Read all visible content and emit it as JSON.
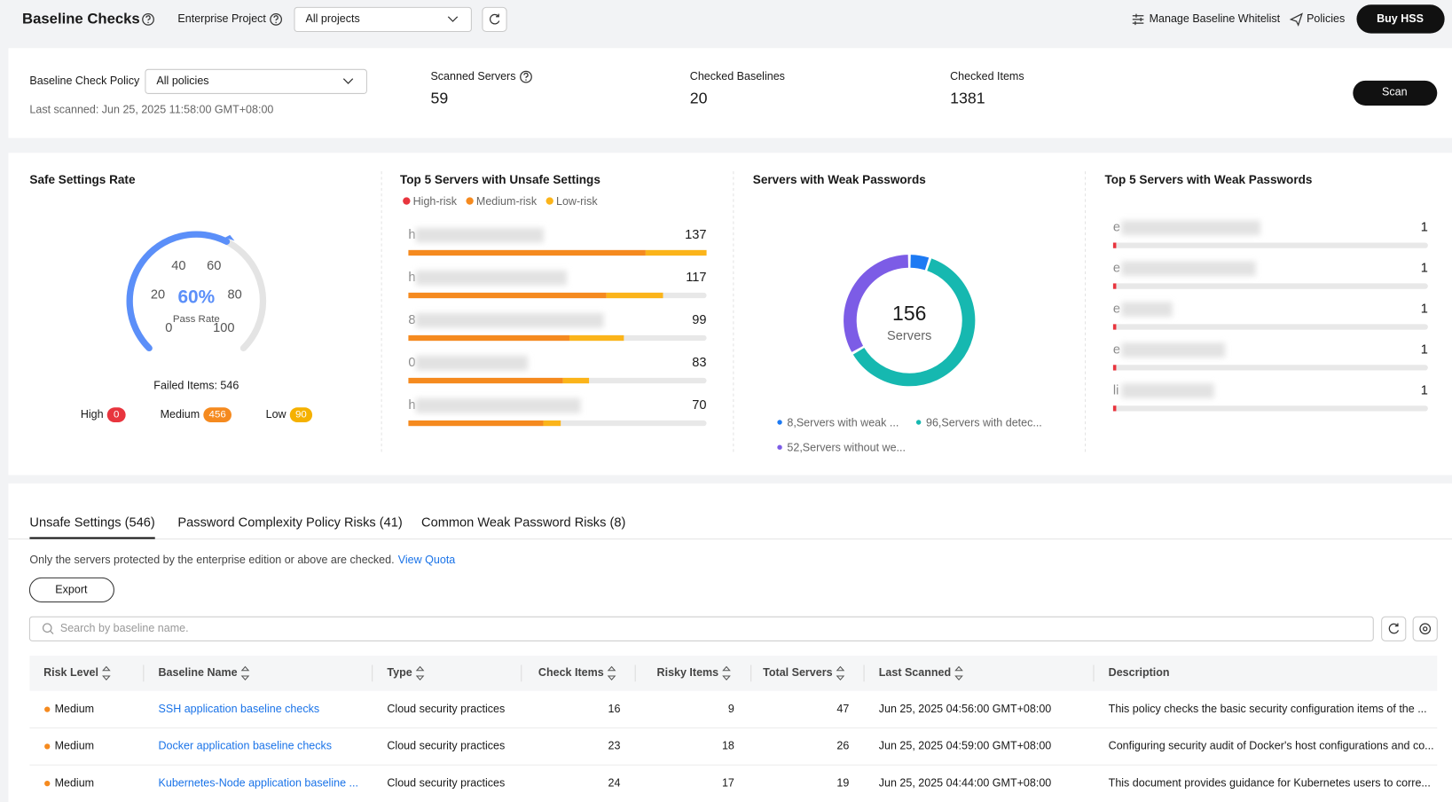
{
  "header": {
    "title": "Baseline Checks",
    "project_label": "Enterprise Project",
    "project_value": "All projects",
    "whitelist": "Manage Baseline Whitelist",
    "policies": "Policies",
    "buy": "Buy HSS"
  },
  "summary": {
    "policy_label": "Baseline Check Policy",
    "policy_value": "All policies",
    "last_scanned": "Last scanned: Jun 25, 2025 11:58:00 GMT+08:00",
    "stats": [
      {
        "label": "Scanned Servers",
        "value": 59
      },
      {
        "label": "Checked Baselines",
        "value": 20
      },
      {
        "label": "Checked Items",
        "value": 1381
      }
    ],
    "scan": "Scan"
  },
  "chart_data": [
    {
      "type": "gauge",
      "title": "Safe Settings Rate",
      "value": 60,
      "value_label": "60%",
      "caption": "Pass Rate",
      "ylim": [
        0,
        100
      ],
      "yticks": [
        0,
        20,
        40,
        60,
        80,
        100
      ],
      "color": "#5b8ff9",
      "failed": "Failed Items: 546",
      "levels": [
        {
          "name": "High",
          "value": 0,
          "color": "#e8353e"
        },
        {
          "name": "Medium",
          "value": 456,
          "color": "#f58a1f"
        },
        {
          "name": "Low",
          "value": 90,
          "color": "#f5b100"
        }
      ]
    },
    {
      "type": "stacked_bar_list",
      "title": "Top 5 Servers with Unsafe Settings",
      "categories": [
        "h",
        "h",
        "8",
        "0",
        "h"
      ],
      "totals": [
        137,
        117,
        99,
        83,
        70
      ],
      "xlim": [
        0,
        137
      ],
      "series": [
        {
          "name": "High-risk",
          "color": "#e8353e",
          "values": [
            0,
            0,
            0,
            0,
            0
          ]
        },
        {
          "name": "Medium-risk",
          "color": "#f58a1f",
          "values": [
            109,
            91,
            74,
            71,
            62
          ]
        },
        {
          "name": "Low-risk",
          "color": "#fbb41a",
          "values": [
            28,
            26,
            25,
            12,
            8
          ]
        }
      ]
    },
    {
      "type": "donut",
      "title": "Servers with Weak Passwords",
      "total": 156,
      "caption": "Servers",
      "values": [
        8,
        96,
        52
      ],
      "labels": [
        "8,Servers with weak ...",
        "96,Servers with detec...",
        "52,Servers without we..."
      ],
      "colors": [
        "#1d7af3",
        "#16b8b0",
        "#7c5ce6"
      ]
    },
    {
      "type": "bar_list",
      "title": "Top 5 Servers with Weak Passwords",
      "categories": [
        "e",
        "e",
        "e",
        "e",
        "li"
      ],
      "values": [
        1,
        1,
        1,
        1,
        1
      ],
      "xlim": [
        0,
        100
      ],
      "color": "#e8353e"
    }
  ],
  "risks": {
    "tabs": [
      "Unsafe Settings (546)",
      "Password Complexity Policy Risks (41)",
      "Common Weak Password Risks (8)"
    ],
    "notice": "Only the servers protected by the enterprise edition or above are checked.",
    "quota_link": "View Quota",
    "export": "Export",
    "search_placeholder": "Search by baseline name.",
    "table": {
      "risk_color": "#f58a1f",
      "columns": [
        "Risk Level",
        "Baseline Name",
        "Type",
        "Check Items",
        "Risky Items",
        "Total Servers",
        "Last Scanned",
        "Description"
      ],
      "rows": [
        [
          "Medium",
          "SSH application baseline checks",
          "Cloud security practices",
          16,
          9,
          47,
          "Jun 25, 2025 04:56:00 GMT+08:00",
          "This policy checks the basic security configuration items of the ..."
        ],
        [
          "Medium",
          "Docker application baseline checks",
          "Cloud security practices",
          23,
          18,
          26,
          "Jun 25, 2025 04:59:00 GMT+08:00",
          "Configuring security audit of Docker's host configurations and co..."
        ],
        [
          "Medium",
          "Kubernetes-Node application baseline ...",
          "Cloud security practices",
          24,
          17,
          19,
          "Jun 25, 2025 04:44:00 GMT+08:00",
          "This document provides guidance for Kubernetes users to corre..."
        ]
      ]
    }
  }
}
